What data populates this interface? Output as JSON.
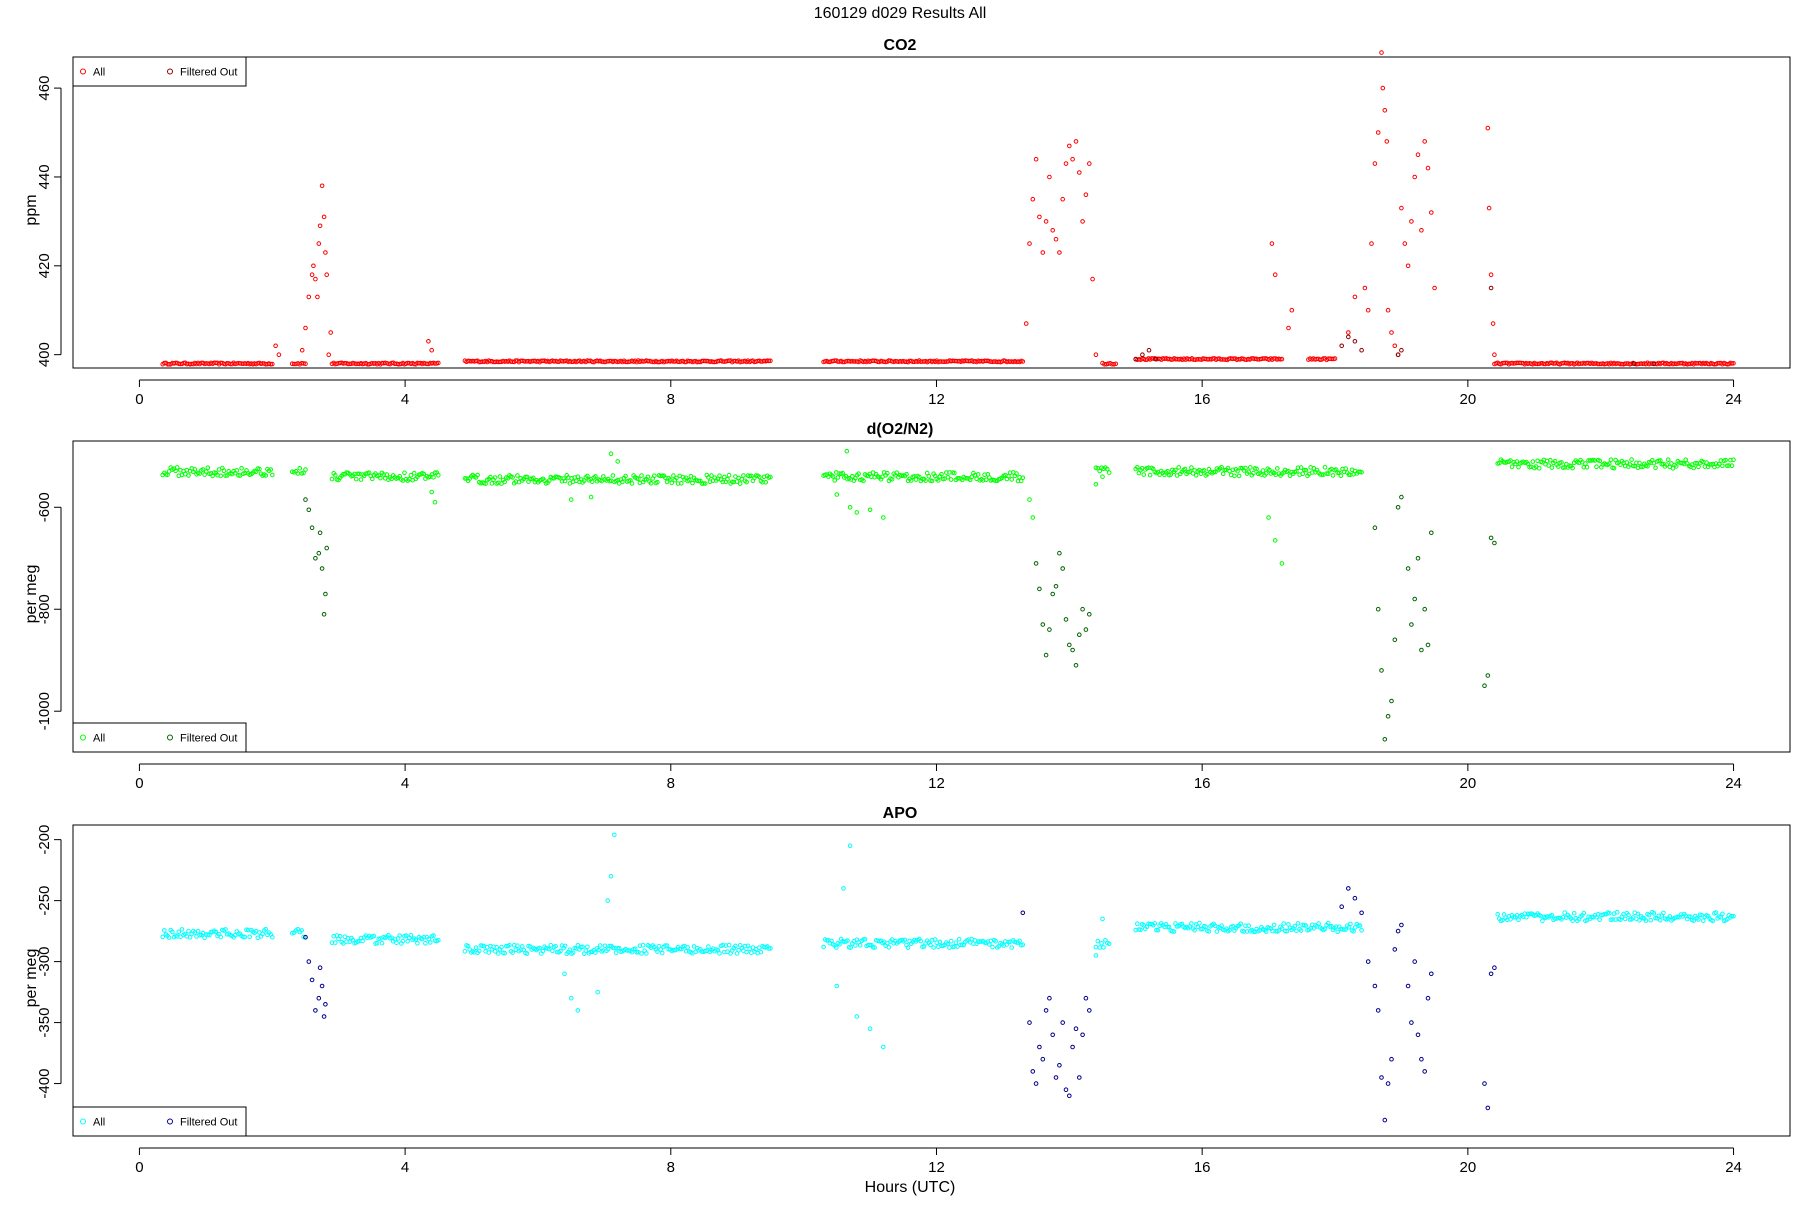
{
  "figure": {
    "title": "160129   d029   Results All",
    "xlabel": "Hours (UTC)"
  },
  "chart_data": [
    {
      "type": "scatter",
      "title": "CO2",
      "ylabel": "ppm",
      "xlim": [
        0,
        24
      ],
      "ylim": [
        397,
        467
      ],
      "xticks": [
        0,
        4,
        8,
        12,
        16,
        20,
        24
      ],
      "yticks": [
        400,
        420,
        440,
        460
      ],
      "legend": {
        "position": "top-left",
        "entries": [
          "All",
          "Filtered Out"
        ]
      },
      "colors": {
        "all": "#ff0000",
        "filtered": "#8b0000"
      },
      "baseline_segments": [
        [
          0.35,
          2.0,
          398
        ],
        [
          2.3,
          2.5,
          398
        ],
        [
          2.9,
          4.5,
          398
        ],
        [
          4.9,
          9.5,
          398.5
        ],
        [
          10.3,
          13.3,
          398.5
        ],
        [
          14.5,
          14.7,
          398
        ],
        [
          15.0,
          17.2,
          399
        ],
        [
          17.6,
          18.0,
          399
        ],
        [
          20.4,
          24.0,
          398
        ]
      ],
      "series": [
        {
          "name": "All",
          "x": [
            2.05,
            2.1,
            2.45,
            2.5,
            2.55,
            2.6,
            2.62,
            2.65,
            2.68,
            2.7,
            2.72,
            2.75,
            2.78,
            2.8,
            2.82,
            2.85,
            2.88,
            4.35,
            4.4,
            13.35,
            13.4,
            13.45,
            13.5,
            13.55,
            13.6,
            13.65,
            13.7,
            13.75,
            13.8,
            13.85,
            13.9,
            13.95,
            14.0,
            14.05,
            14.1,
            14.15,
            14.2,
            14.25,
            14.3,
            14.35,
            14.4,
            17.05,
            17.1,
            17.3,
            17.35,
            18.2,
            18.3,
            18.45,
            18.5,
            18.55,
            18.6,
            18.65,
            18.7,
            18.72,
            18.75,
            18.78,
            18.8,
            18.85,
            18.9,
            18.95,
            19.0,
            19.05,
            19.1,
            19.15,
            19.2,
            19.25,
            19.3,
            19.35,
            19.4,
            19.45,
            19.5,
            20.3,
            20.32,
            20.35,
            20.38,
            20.4
          ],
          "y": [
            402,
            400,
            401,
            406,
            413,
            418,
            420,
            417,
            413,
            425,
            429,
            438,
            431,
            423,
            418,
            400,
            405,
            403,
            401,
            407,
            425,
            435,
            444,
            431,
            423,
            430,
            440,
            428,
            426,
            423,
            435,
            443,
            447,
            444,
            448,
            441,
            430,
            436,
            443,
            417,
            400,
            425,
            418,
            406,
            410,
            405,
            413,
            415,
            410,
            425,
            443,
            450,
            468,
            460,
            455,
            448,
            410,
            405,
            402,
            400,
            433,
            425,
            420,
            430,
            440,
            445,
            428,
            448,
            442,
            432,
            415,
            451,
            433,
            418,
            407,
            400
          ]
        },
        {
          "name": "Filtered Out",
          "x": [
            15.0,
            15.1,
            15.2,
            15.3,
            18.1,
            18.2,
            18.3,
            18.4,
            18.95,
            19.0,
            20.35,
            22.5,
            22.8
          ],
          "y": [
            399,
            400,
            401,
            399,
            402,
            404,
            403,
            401,
            400,
            401,
            415,
            398,
            398
          ]
        }
      ]
    },
    {
      "type": "scatter",
      "title": "d(O2/N2)",
      "ylabel": "per meg",
      "xlim": [
        0,
        24
      ],
      "ylim": [
        -1080,
        -470
      ],
      "xticks": [
        0,
        4,
        8,
        12,
        16,
        20,
        24
      ],
      "yticks": [
        -600,
        -800,
        -1000
      ],
      "legend": {
        "position": "bottom-left",
        "entries": [
          "All",
          "Filtered Out"
        ]
      },
      "colors": {
        "all": "#00ff00",
        "filtered": "#006400"
      },
      "baseline_segments": [
        [
          0.35,
          2.0,
          -530
        ],
        [
          2.3,
          2.5,
          -530
        ],
        [
          2.9,
          4.5,
          -540
        ],
        [
          4.9,
          9.5,
          -545
        ],
        [
          10.3,
          13.3,
          -540
        ],
        [
          14.4,
          14.6,
          -530
        ],
        [
          15.0,
          18.4,
          -530
        ],
        [
          20.45,
          24.0,
          -515
        ]
      ],
      "series": [
        {
          "name": "All",
          "x": [
            4.4,
            4.45,
            6.5,
            6.8,
            7.1,
            7.2,
            10.5,
            10.65,
            10.7,
            10.8,
            11.0,
            11.2,
            13.4,
            13.45,
            14.4,
            14.5,
            17.0,
            17.1,
            17.2
          ],
          "y": [
            -570,
            -590,
            -585,
            -580,
            -495,
            -510,
            -575,
            -490,
            -600,
            -610,
            -605,
            -620,
            -585,
            -620,
            -555,
            -540,
            -620,
            -665,
            -710
          ]
        },
        {
          "name": "Filtered Out",
          "x": [
            2.5,
            2.55,
            2.6,
            2.65,
            2.7,
            2.72,
            2.75,
            2.78,
            2.8,
            2.82,
            13.5,
            13.55,
            13.6,
            13.65,
            13.7,
            13.75,
            13.8,
            13.85,
            13.9,
            13.95,
            14.0,
            14.05,
            14.1,
            14.15,
            14.2,
            14.25,
            14.3,
            18.6,
            18.65,
            18.7,
            18.75,
            18.8,
            18.85,
            18.9,
            18.95,
            19.0,
            19.1,
            19.15,
            19.2,
            19.25,
            19.3,
            19.35,
            19.4,
            19.45,
            20.25,
            20.3,
            20.35,
            20.4
          ],
          "y": [
            -585,
            -605,
            -640,
            -700,
            -690,
            -650,
            -720,
            -810,
            -770,
            -680,
            -710,
            -760,
            -830,
            -890,
            -840,
            -770,
            -755,
            -690,
            -720,
            -820,
            -870,
            -880,
            -910,
            -850,
            -800,
            -840,
            -810,
            -640,
            -800,
            -920,
            -1055,
            -1010,
            -980,
            -860,
            -600,
            -580,
            -720,
            -830,
            -780,
            -700,
            -880,
            -800,
            -870,
            -650,
            -950,
            -930,
            -660,
            -670
          ]
        }
      ]
    },
    {
      "type": "scatter",
      "title": "APO",
      "ylabel": "per meg",
      "xlim": [
        0,
        24
      ],
      "ylim": [
        -443,
        -188
      ],
      "xticks": [
        0,
        4,
        8,
        12,
        16,
        20,
        24
      ],
      "yticks": [
        -200,
        -250,
        -300,
        -350,
        -400
      ],
      "legend": {
        "position": "bottom-left",
        "entries": [
          "All",
          "Filtered Out"
        ]
      },
      "colors": {
        "all": "#00ffff",
        "filtered": "#00008b"
      },
      "baseline_segments": [
        [
          0.35,
          2.0,
          -277
        ],
        [
          2.3,
          2.5,
          -277
        ],
        [
          2.9,
          4.5,
          -282
        ],
        [
          4.9,
          9.5,
          -290
        ],
        [
          10.3,
          13.3,
          -285
        ],
        [
          14.4,
          14.6,
          -285
        ],
        [
          15.0,
          18.4,
          -272
        ],
        [
          20.45,
          24.0,
          -263
        ]
      ],
      "series": [
        {
          "name": "All",
          "x": [
            6.4,
            6.5,
            6.6,
            6.9,
            7.05,
            7.1,
            7.15,
            10.5,
            10.6,
            10.7,
            10.8,
            11.0,
            11.2,
            14.4,
            14.5
          ],
          "y": [
            -310,
            -330,
            -340,
            -325,
            -250,
            -230,
            -196,
            -320,
            -240,
            -205,
            -345,
            -355,
            -370,
            -295,
            -265
          ]
        },
        {
          "name": "Filtered Out",
          "x": [
            2.5,
            2.55,
            2.6,
            2.65,
            2.7,
            2.72,
            2.75,
            2.78,
            2.8,
            13.3,
            13.4,
            13.45,
            13.5,
            13.55,
            13.6,
            13.65,
            13.7,
            13.75,
            13.8,
            13.85,
            13.9,
            13.95,
            14.0,
            14.05,
            14.1,
            14.15,
            14.2,
            14.25,
            14.3,
            18.1,
            18.2,
            18.3,
            18.4,
            18.5,
            18.6,
            18.65,
            18.7,
            18.75,
            18.8,
            18.85,
            18.9,
            18.95,
            19.0,
            19.1,
            19.15,
            19.2,
            19.25,
            19.3,
            19.35,
            19.4,
            19.45,
            20.25,
            20.3,
            20.35,
            20.4
          ],
          "y": [
            -280,
            -300,
            -315,
            -340,
            -330,
            -305,
            -320,
            -345,
            -335,
            -260,
            -350,
            -390,
            -400,
            -370,
            -380,
            -340,
            -330,
            -360,
            -395,
            -385,
            -350,
            -405,
            -410,
            -370,
            -355,
            -395,
            -360,
            -330,
            -340,
            -255,
            -240,
            -248,
            -260,
            -300,
            -320,
            -340,
            -395,
            -430,
            -400,
            -380,
            -290,
            -275,
            -270,
            -320,
            -350,
            -300,
            -360,
            -380,
            -390,
            -330,
            -310,
            -400,
            -420,
            -310,
            -305
          ]
        }
      ]
    }
  ]
}
